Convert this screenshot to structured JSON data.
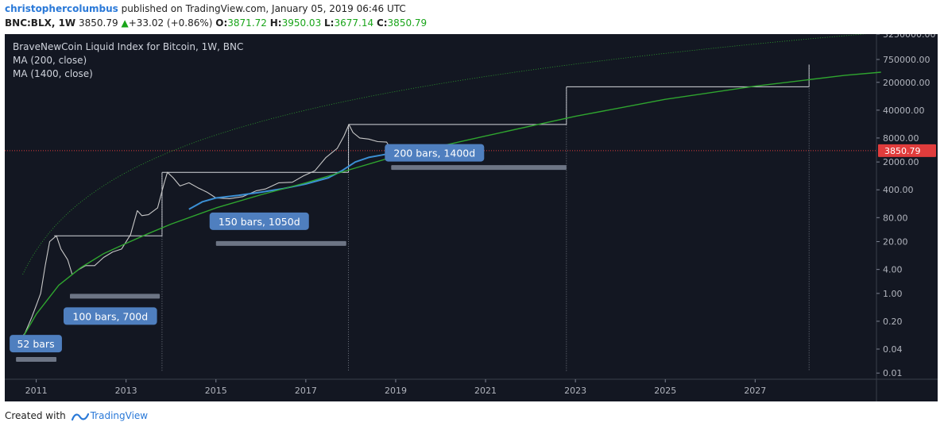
{
  "header": {
    "author": "christophercolumbus",
    "published": "published on TradingView.com, January 05, 2019 06:46 UTC"
  },
  "quote": {
    "symbol": "BNC:BLX, 1W",
    "last": "3850.79",
    "change": "+33.02 (+0.86%)",
    "o_label": "O:",
    "o": "3871.72",
    "h_label": "H:",
    "h": "3950.03",
    "l_label": "L:",
    "l": "3677.14",
    "c_label": "C:",
    "c": "3850.79"
  },
  "legend": {
    "title": "BraveNewCoin Liquid Index for Bitcoin, 1W, BNC",
    "ma1": "MA (200, close)",
    "ma2": "MA (1400, close)"
  },
  "footer": {
    "created": "Created with",
    "brand": "TradingView"
  },
  "colors": {
    "background": "#131722",
    "price": "#c8c8c8",
    "ma200": "#3b8fd4",
    "ma1400": "#2fa52f",
    "price_line": "#e03c3c",
    "label_bg": "#4f7fbf",
    "range_bar": "#6d7585"
  },
  "chart_data": {
    "type": "line",
    "y_scale": "log",
    "ylim": [
      0.007,
      3250000
    ],
    "xlim": [
      "2010-04",
      "2029-09"
    ],
    "x_ticks": [
      "2011",
      "2013",
      "2015",
      "2017",
      "2019",
      "2021",
      "2023",
      "2025",
      "2027"
    ],
    "y_ticks": [
      "3250000.00",
      "750000.00",
      "200000.00",
      "40000.00",
      "8000.00",
      "2000.00",
      "400.00",
      "80.00",
      "20.00",
      "4.00",
      "1.00",
      "0.20",
      "0.04",
      "0.01"
    ],
    "last_price_label": "3850.79",
    "last_price": 3850.79,
    "series": [
      {
        "name": "BraveNewCoin Liquid Index for Bitcoin",
        "points": [
          [
            2010.6,
            0.06
          ],
          [
            2010.75,
            0.1
          ],
          [
            2010.9,
            0.25
          ],
          [
            2011.0,
            0.5
          ],
          [
            2011.1,
            1.0
          ],
          [
            2011.2,
            5
          ],
          [
            2011.3,
            20
          ],
          [
            2011.45,
            28
          ],
          [
            2011.55,
            13
          ],
          [
            2011.7,
            7
          ],
          [
            2011.8,
            3
          ],
          [
            2011.95,
            4
          ],
          [
            2012.1,
            5
          ],
          [
            2012.3,
            5
          ],
          [
            2012.5,
            8
          ],
          [
            2012.7,
            11
          ],
          [
            2012.9,
            13
          ],
          [
            2013.1,
            30
          ],
          [
            2013.25,
            120
          ],
          [
            2013.35,
            90
          ],
          [
            2013.5,
            95
          ],
          [
            2013.7,
            140
          ],
          [
            2013.85,
            600
          ],
          [
            2013.92,
            1100
          ],
          [
            2014.05,
            800
          ],
          [
            2014.2,
            500
          ],
          [
            2014.4,
            600
          ],
          [
            2014.6,
            450
          ],
          [
            2014.8,
            350
          ],
          [
            2015.0,
            250
          ],
          [
            2015.3,
            240
          ],
          [
            2015.6,
            270
          ],
          [
            2015.9,
            380
          ],
          [
            2016.1,
            420
          ],
          [
            2016.4,
            600
          ],
          [
            2016.7,
            620
          ],
          [
            2016.95,
            900
          ],
          [
            2017.2,
            1200
          ],
          [
            2017.45,
            2600
          ],
          [
            2017.7,
            4400
          ],
          [
            2017.85,
            9000
          ],
          [
            2017.96,
            17500
          ],
          [
            2018.05,
            11000
          ],
          [
            2018.2,
            8000
          ],
          [
            2018.4,
            7500
          ],
          [
            2018.6,
            6500
          ],
          [
            2018.8,
            6300
          ],
          [
            2018.9,
            4000
          ],
          [
            2019.0,
            3850.79
          ]
        ]
      },
      {
        "name": "MA (200, close)",
        "points": [
          [
            2014.4,
            130
          ],
          [
            2014.7,
            200
          ],
          [
            2015.0,
            250
          ],
          [
            2015.5,
            290
          ],
          [
            2016.0,
            350
          ],
          [
            2016.5,
            430
          ],
          [
            2017.0,
            560
          ],
          [
            2017.5,
            800
          ],
          [
            2017.8,
            1200
          ],
          [
            2018.1,
            2000
          ],
          [
            2018.4,
            2600
          ],
          [
            2018.7,
            3000
          ],
          [
            2019.0,
            3500
          ]
        ]
      },
      {
        "name": "MA (1400, close)",
        "points": [
          [
            2010.6,
            0.05
          ],
          [
            2011.0,
            0.3
          ],
          [
            2011.5,
            1.6
          ],
          [
            2012.0,
            4.5
          ],
          [
            2012.5,
            10
          ],
          [
            2013.0,
            18
          ],
          [
            2013.5,
            32
          ],
          [
            2014.0,
            55
          ],
          [
            2015.0,
            140
          ],
          [
            2016.0,
            300
          ],
          [
            2017.0,
            600
          ],
          [
            2018.0,
            1300
          ],
          [
            2019.0,
            2800
          ],
          [
            2021.0,
            9000
          ],
          [
            2023.0,
            28000
          ],
          [
            2025.0,
            75000
          ],
          [
            2027.0,
            160000
          ],
          [
            2029.0,
            300000
          ],
          [
            2029.8,
            360000
          ]
        ]
      }
    ],
    "boxes": [
      {
        "x1": 2011.4,
        "x2": 2013.8,
        "y1": 28,
        "y2": 1100
      },
      {
        "x1": 2013.8,
        "x2": 2017.95,
        "y1": 1100,
        "y2": 17500
      },
      {
        "x1": 2017.95,
        "x2": 2022.8,
        "y1": 17500,
        "y2": 155000
      },
      {
        "x1": 2022.8,
        "x2": 2028.2,
        "y1": 155000,
        "y2": 560000
      }
    ],
    "annotations": [
      {
        "text": "52 bars",
        "x": 2010.55,
        "x2": 2011.45,
        "y": 0.022,
        "label_y": 0.055
      },
      {
        "text": "100 bars, 700d",
        "x": 2011.75,
        "x2": 2013.75,
        "y": 0.85,
        "label_y": 0.27
      },
      {
        "text": "150 bars, 1050d",
        "x": 2015.0,
        "x2": 2017.9,
        "y": 18,
        "label_y": 65
      },
      {
        "text": "200 bars, 1400d",
        "x": 2018.9,
        "x2": 2022.8,
        "y": 1450,
        "label_y": 3400
      }
    ]
  }
}
